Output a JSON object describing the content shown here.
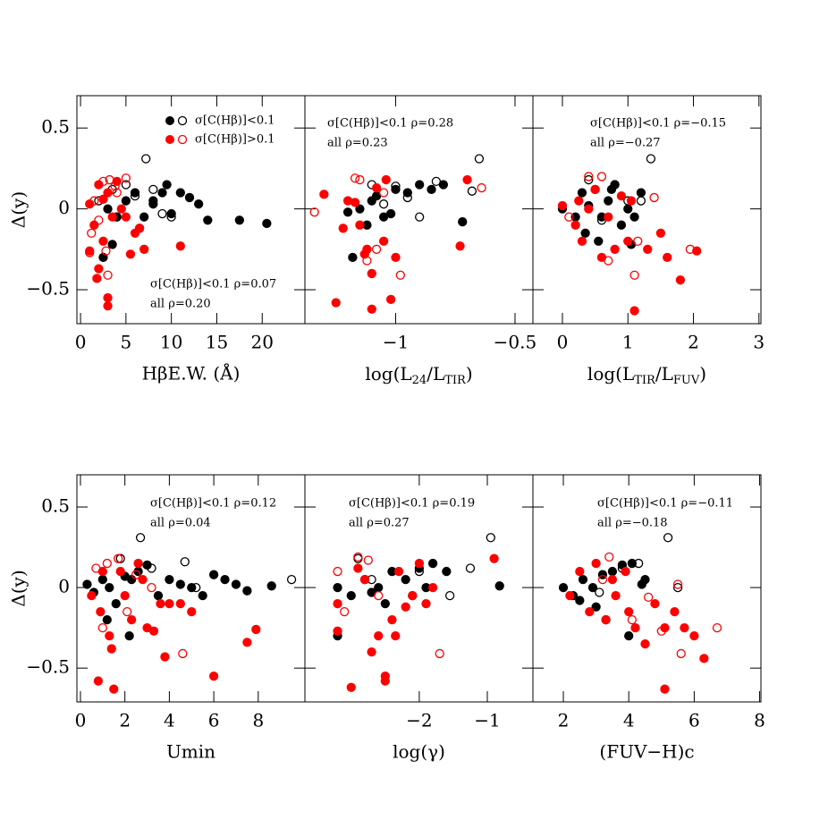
{
  "chart_data": [
    {
      "type": "scatter",
      "xlabel": "HβE.W.  (Å)",
      "ylabel": "Δ(y)",
      "xlim": [
        -0.4,
        24.7
      ],
      "xticks": [
        0,
        5,
        10,
        15,
        20
      ],
      "ylim": [
        -0.71,
        0.7
      ],
      "yticks": [
        {
          "value": -0.5,
          "label": "−0.5"
        },
        0,
        0.5
      ],
      "annotations": [
        {
          "text": "σ[C(Hβ)]<0.1  ρ=0.07",
          "color": "#000000"
        },
        {
          "text": "all ρ=0.20",
          "color": "#ff0000"
        }
      ],
      "series": [
        {
          "name": "σ[C(Hβ)]<0.1",
          "color": "#000000",
          "filled": true,
          "x": [
            3,
            4,
            5,
            6,
            7,
            8,
            9,
            10,
            11,
            12,
            13,
            14,
            17.5,
            20.5,
            6.5,
            8,
            9.5,
            3.5,
            2.5
          ],
          "y": [
            0,
            -0.05,
            0.05,
            0.1,
            -0.05,
            0.03,
            0.1,
            -0.03,
            0.1,
            0.07,
            0.03,
            -0.07,
            -0.07,
            -0.09,
            -0.12,
            0.05,
            0.15,
            -0.22,
            -0.3
          ]
        },
        {
          "color": "#000000",
          "filled": false,
          "x": [
            7.2,
            5,
            6,
            3.5,
            9,
            2,
            4,
            8,
            10
          ],
          "y": [
            0.31,
            0.15,
            0.08,
            0.12,
            -0.03,
            0.05,
            -0.05,
            0.12,
            -0.05
          ]
        },
        {
          "name": "σ[C(Hβ)]>0.1",
          "color": "#ff0000",
          "filled": true,
          "x": [
            1,
            1.5,
            2,
            2.5,
            3,
            3,
            3.5,
            4,
            5,
            5.5,
            6,
            7,
            11,
            2,
            2.5,
            3,
            1.8,
            4.5,
            1,
            6.5
          ],
          "y": [
            0.03,
            -0.1,
            0.15,
            -0.2,
            0.1,
            -0.6,
            -0.05,
            0.17,
            -0.05,
            -0.28,
            -0.15,
            -0.25,
            -0.23,
            -0.37,
            0.06,
            -0.55,
            -0.43,
            0,
            -0.26,
            -0.12
          ]
        },
        {
          "color": "#ff0000",
          "filled": false,
          "x": [
            1,
            1.5,
            2,
            2.5,
            3,
            4,
            5,
            3.2,
            1.2,
            2.8,
            3.8
          ],
          "y": [
            -0.27,
            0.05,
            -0.07,
            0.17,
            -0.41,
            0.1,
            0.19,
            0.18,
            -0.15,
            -0.26,
            0.14
          ]
        }
      ]
    },
    {
      "type": "scatter",
      "xlabel": [
        "log(L",
        "24",
        "/L",
        "TIR",
        ")"
      ],
      "xlim": [
        -1.38,
        -0.425
      ],
      "xticks": [
        {
          "value": -1,
          "label": "−1"
        },
        {
          "value": -0.5,
          "label": "−0.5"
        }
      ],
      "ylim": [
        -0.71,
        0.7
      ],
      "yticks": [
        -0.5,
        0,
        0.5
      ],
      "annotations": [
        {
          "text": "σ[C(Hβ)]<0.1 ρ=0.28",
          "color": "#000000"
        },
        {
          "text": "all ρ=0.23",
          "color": "#ff0000"
        }
      ],
      "series": [
        {
          "color": "#000000",
          "filled": true,
          "x": [
            -1.15,
            -1.1,
            -1.05,
            -1.0,
            -0.95,
            -0.9,
            -1.12,
            -1.08,
            -1.02,
            -0.85,
            -0.8,
            -1.18,
            -1.2,
            -0.72
          ],
          "y": [
            0.0,
            0.05,
            -0.05,
            0.12,
            0.1,
            0.15,
            -0.1,
            0.08,
            -0.03,
            0.12,
            0.15,
            -0.3,
            -0.02,
            -0.08
          ]
        },
        {
          "color": "#000000",
          "filled": false,
          "x": [
            -0.65,
            -1.1,
            -1.0,
            -0.95,
            -0.68,
            -1.05,
            -0.9,
            -0.83
          ],
          "y": [
            0.31,
            0.15,
            0.14,
            0.07,
            0.11,
            0.03,
            -0.05,
            0.17
          ]
        },
        {
          "color": "#ff0000",
          "filled": true,
          "x": [
            -1.3,
            -1.25,
            -1.2,
            -1.15,
            -1.12,
            -1.1,
            -1.08,
            -1.05,
            -1.02,
            -1.0,
            -1.22,
            -1.1,
            -0.73,
            -0.7,
            -1.13,
            -1.04,
            -1.17
          ],
          "y": [
            0.09,
            -0.58,
            0.05,
            -0.1,
            -0.25,
            -0.4,
            0.13,
            -0.2,
            -0.56,
            -0.3,
            -0.12,
            -0.62,
            -0.23,
            0.18,
            -0.28,
            0.18,
            0.04
          ]
        },
        {
          "color": "#ff0000",
          "filled": false,
          "x": [
            -1.34,
            -1.17,
            -1.15,
            -1.08,
            -1.12,
            -0.98,
            -0.64,
            -1.05
          ],
          "y": [
            -0.02,
            0.19,
            0.18,
            -0.25,
            -0.32,
            -0.41,
            0.13,
            0.1
          ]
        }
      ]
    },
    {
      "type": "scatter",
      "xlabel": [
        "log(L",
        "TIR",
        "/L",
        "FUV",
        ")"
      ],
      "xlim": [
        -0.45,
        3.03
      ],
      "xticks": [
        0,
        1,
        2,
        3
      ],
      "ylim": [
        -0.71,
        0.7
      ],
      "yticks": [
        -0.5,
        0,
        0.5
      ],
      "annotations": [
        {
          "text": "σ[C(Hβ)]<0.1 ρ=−0.15",
          "color": "#000000"
        },
        {
          "text": "all ρ=−0.27",
          "color": "#ff0000"
        }
      ],
      "series": [
        {
          "color": "#000000",
          "filled": true,
          "x": [
            0,
            0.2,
            0.3,
            0.4,
            0.5,
            0.6,
            0.7,
            0.8,
            0.9,
            1.0,
            1.1,
            1.2,
            0.35,
            0.55,
            0.75,
            1.05
          ],
          "y": [
            0.0,
            -0.05,
            0.1,
            0.02,
            0.12,
            -0.05,
            0.05,
            0.15,
            -0.1,
            0.0,
            -0.05,
            0.1,
            -0.15,
            -0.2,
            0.12,
            -0.22
          ]
        },
        {
          "color": "#000000",
          "filled": false,
          "x": [
            1.35,
            0.8,
            1.0,
            1.2,
            0.6,
            0.4
          ],
          "y": [
            0.31,
            0.15,
            0.05,
            0.05,
            -0.07,
            0.18
          ]
        },
        {
          "color": "#ff0000",
          "filled": true,
          "x": [
            0,
            0.2,
            0.3,
            0.5,
            0.6,
            0.7,
            0.8,
            1.0,
            1.1,
            1.3,
            1.5,
            1.6,
            1.8,
            2.05,
            1.05,
            0.4,
            0.9,
            0.25
          ],
          "y": [
            0.02,
            -0.1,
            -0.2,
            0.12,
            -0.3,
            -0.05,
            -0.25,
            -0.2,
            -0.63,
            -0.25,
            -0.15,
            -0.3,
            -0.44,
            -0.26,
            0.05,
            0.0,
            0.08,
            0.05
          ]
        },
        {
          "color": "#ff0000",
          "filled": false,
          "x": [
            0.4,
            0.7,
            1.4,
            1.95,
            1.1,
            0.6,
            0.1,
            1.15
          ],
          "y": [
            0.2,
            -0.32,
            0.07,
            -0.25,
            -0.41,
            0.2,
            -0.05,
            -0.2
          ]
        }
      ]
    },
    {
      "type": "scatter",
      "xlabel": "Umin",
      "ylabel": "Δ(y)",
      "xlim": [
        -0.16,
        10.1
      ],
      "xticks": [
        0,
        2,
        4,
        6,
        8
      ],
      "ylim": [
        -0.71,
        0.7
      ],
      "yticks": [
        {
          "value": -0.5,
          "label": "−0.5"
        },
        0,
        0.5
      ],
      "annotations": [
        {
          "text": "σ[C(Hβ)]<0.1 ρ=0.12",
          "color": "#000000"
        },
        {
          "text": "all ρ=0.04",
          "color": "#ff0000"
        }
      ],
      "series": [
        {
          "color": "#000000",
          "filled": true,
          "x": [
            0.3,
            0.6,
            1,
            1.3,
            1.6,
            2,
            2.3,
            2.6,
            3,
            3.5,
            4,
            4.5,
            5,
            5.5,
            6,
            6.5,
            7,
            7.5,
            8.6,
            1.2,
            2.2
          ],
          "y": [
            0.02,
            -0.03,
            0.05,
            0.0,
            -0.1,
            0.07,
            0.05,
            0.1,
            0.14,
            -0.05,
            0.05,
            0.02,
            0.0,
            -0.05,
            0.08,
            0.05,
            0.02,
            -0.02,
            0.01,
            -0.2,
            -0.3
          ]
        },
        {
          "color": "#000000",
          "filled": false,
          "x": [
            2.7,
            4.7,
            9.5,
            3.2,
            1.8,
            5.2
          ],
          "y": [
            0.31,
            0.16,
            0.05,
            0.12,
            0.18,
            0.0
          ]
        },
        {
          "color": "#ff0000",
          "filled": true,
          "x": [
            0.5,
            0.8,
            1,
            1.3,
            1.5,
            1.8,
            2,
            2.3,
            2.6,
            3,
            3.3,
            3.8,
            4,
            4.5,
            5,
            6,
            7.5,
            7.9,
            1.4,
            0.9,
            2.8,
            3.6
          ],
          "y": [
            -0.05,
            -0.58,
            0.1,
            -0.3,
            -0.63,
            0.1,
            -0.05,
            -0.2,
            0.15,
            -0.25,
            -0.27,
            -0.43,
            -0.1,
            -0.1,
            -0.15,
            -0.55,
            -0.34,
            -0.26,
            -0.38,
            -0.15,
            0.05,
            -0.1
          ]
        },
        {
          "color": "#ff0000",
          "filled": false,
          "x": [
            0.7,
            1.2,
            1.7,
            2.5,
            4.6,
            1.0,
            2.1,
            3.2
          ],
          "y": [
            0.12,
            0.15,
            0.18,
            0.08,
            -0.41,
            -0.25,
            -0.15,
            0.0
          ]
        }
      ]
    },
    {
      "type": "scatter",
      "xlabel": "log(γ)",
      "xlim": [
        -3.68,
        -0.33
      ],
      "xticks": [
        {
          "value": -2,
          "label": "−2"
        },
        {
          "value": -1,
          "label": "−1"
        }
      ],
      "ylim": [
        -0.71,
        0.7
      ],
      "yticks": [
        -0.5,
        0,
        0.5
      ],
      "annotations": [
        {
          "text": "σ[C(Hβ)]<0.1 ρ=0.19",
          "color": "#000000"
        },
        {
          "text": "all ρ=0.27",
          "color": "#ff0000"
        }
      ],
      "series": [
        {
          "color": "#000000",
          "filled": true,
          "x": [
            -3.2,
            -3,
            -2.8,
            -2.6,
            -2.4,
            -2.2,
            -2,
            -1.8,
            -1.6,
            -1.9,
            -2.1,
            -2.5,
            -2.7,
            -0.82,
            -3.2
          ],
          "y": [
            0.0,
            -0.05,
            0.05,
            0.0,
            0.1,
            0.05,
            0.12,
            0.15,
            0.1,
            0.0,
            -0.05,
            -0.1,
            -0.03,
            0.01,
            -0.3
          ]
        },
        {
          "color": "#000000",
          "filled": false,
          "x": [
            -0.95,
            -1.25,
            -1.55,
            -2.9,
            -2.7,
            -2.0
          ],
          "y": [
            0.31,
            0.12,
            -0.05,
            0.18,
            0.05,
            0.1
          ]
        },
        {
          "color": "#ff0000",
          "filled": true,
          "x": [
            -3.2,
            -3.0,
            -2.8,
            -2.6,
            -2.5,
            -2.4,
            -2.3,
            -2.2,
            -2.1,
            -2.0,
            -1.9,
            -1.8,
            -2.7,
            -2.5,
            -0.9,
            -2.35,
            -3.2,
            -2.9
          ],
          "y": [
            -0.27,
            -0.62,
            0.05,
            -0.3,
            -0.55,
            -0.2,
            0.1,
            -0.12,
            -0.05,
            0.15,
            -0.1,
            0.0,
            -0.4,
            -0.58,
            0.18,
            -0.3,
            -0.1,
            0.12
          ]
        },
        {
          "color": "#ff0000",
          "filled": false,
          "x": [
            -3.2,
            -2.9,
            -2.75,
            -1.7,
            -2.6,
            -3.1
          ],
          "y": [
            0.1,
            0.19,
            0.17,
            -0.41,
            -0.05,
            -0.15
          ]
        }
      ]
    },
    {
      "type": "scatter",
      "xlabel": "(FUV−H)c",
      "xlim": [
        1.07,
        8.04
      ],
      "xticks": [
        2,
        4,
        6,
        8
      ],
      "ylim": [
        -0.71,
        0.7
      ],
      "yticks": [
        -0.5,
        0,
        0.5
      ],
      "annotations": [
        {
          "text": "σ[C(Hβ)]<0.1 ρ=−0.11",
          "color": "#000000"
        },
        {
          "text": "all ρ=−0.18",
          "color": "#ff0000"
        }
      ],
      "series": [
        {
          "color": "#000000",
          "filled": true,
          "x": [
            2,
            2.3,
            2.6,
            2.9,
            3.2,
            3.5,
            3.8,
            4.1,
            4.4,
            2.5,
            3.0,
            3.3,
            4.0,
            4.5
          ],
          "y": [
            0.0,
            -0.05,
            0.05,
            0.0,
            0.08,
            0.1,
            0.14,
            0.15,
            0.02,
            -0.08,
            -0.12,
            -0.2,
            -0.3,
            0.05
          ]
        },
        {
          "color": "#000000",
          "filled": false,
          "x": [
            5.2,
            4.3,
            3.8,
            3.1,
            5.5
          ],
          "y": [
            0.31,
            0.15,
            0.12,
            -0.03,
            0.0
          ]
        },
        {
          "color": "#ff0000",
          "filled": true,
          "x": [
            2.2,
            2.5,
            2.8,
            3.0,
            3.3,
            3.6,
            3.9,
            4.2,
            4.5,
            4.8,
            5.1,
            5.4,
            5.7,
            6.0,
            6.3,
            5.1,
            3.5,
            4.0
          ],
          "y": [
            -0.05,
            0.1,
            -0.15,
            0.15,
            -0.2,
            -0.05,
            0.1,
            -0.25,
            -0.35,
            -0.1,
            -0.63,
            -0.15,
            -0.25,
            -0.3,
            -0.44,
            -0.25,
            0.05,
            -0.15
          ]
        },
        {
          "color": "#ff0000",
          "filled": false,
          "x": [
            3.4,
            4.1,
            5.0,
            5.6,
            6.7,
            5.5,
            4.6,
            3.2
          ],
          "y": [
            0.19,
            -0.2,
            -0.27,
            -0.41,
            -0.25,
            0.02,
            -0.06,
            0.05
          ]
        }
      ]
    }
  ]
}
